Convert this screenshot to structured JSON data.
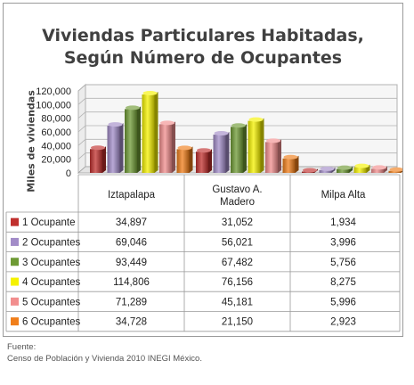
{
  "title_line1": "Viviendas Particulares Habitadas,",
  "title_line2": "Según Número de Ocupantes",
  "source_line1": "Fuente:",
  "source_line2": "Censo de Población y Vivienda 2010 INEGI México.",
  "chart_data": {
    "type": "bar",
    "title": "Viviendas Particulares Habitadas, Según Número de Ocupantes",
    "xlabel": "",
    "ylabel": "Miles de viviendas",
    "ylim": [
      0,
      120000
    ],
    "yticks": [
      "0",
      "20,000",
      "40,000",
      "60,000",
      "80,000",
      "100,000",
      "120,000"
    ],
    "grid": true,
    "legend": "data-table",
    "categories": [
      "Iztapalapa",
      "Gustavo A. Madero",
      "Milpa Alta"
    ],
    "series": [
      {
        "name": "1 Ocupante",
        "color": "#c0302e",
        "values": [
          34897,
          31052,
          1934
        ],
        "labels": [
          "34,897",
          "31,052",
          "1,934"
        ]
      },
      {
        "name": "2 Ocupantes",
        "color": "#a28cc8",
        "values": [
          69046,
          56021,
          3996
        ],
        "labels": [
          "69,046",
          "56,021",
          "3,996"
        ]
      },
      {
        "name": "3 Ocupantes",
        "color": "#6e9a34",
        "values": [
          93449,
          67482,
          5756
        ],
        "labels": [
          "93,449",
          "67,482",
          "5,756"
        ]
      },
      {
        "name": "4 Ocupantes",
        "color": "#f5f200",
        "values": [
          114806,
          76156,
          8275
        ],
        "labels": [
          "114,806",
          "76,156",
          "8,275"
        ]
      },
      {
        "name": "5 Ocupantes",
        "color": "#f28e8e",
        "values": [
          71289,
          45181,
          5996
        ],
        "labels": [
          "71,289",
          "45,181",
          "5,996"
        ]
      },
      {
        "name": "6 Ocupantes",
        "color": "#f07e1a",
        "values": [
          34728,
          21150,
          2923
        ],
        "labels": [
          "34,728",
          "21,150",
          "2,923"
        ]
      }
    ]
  }
}
